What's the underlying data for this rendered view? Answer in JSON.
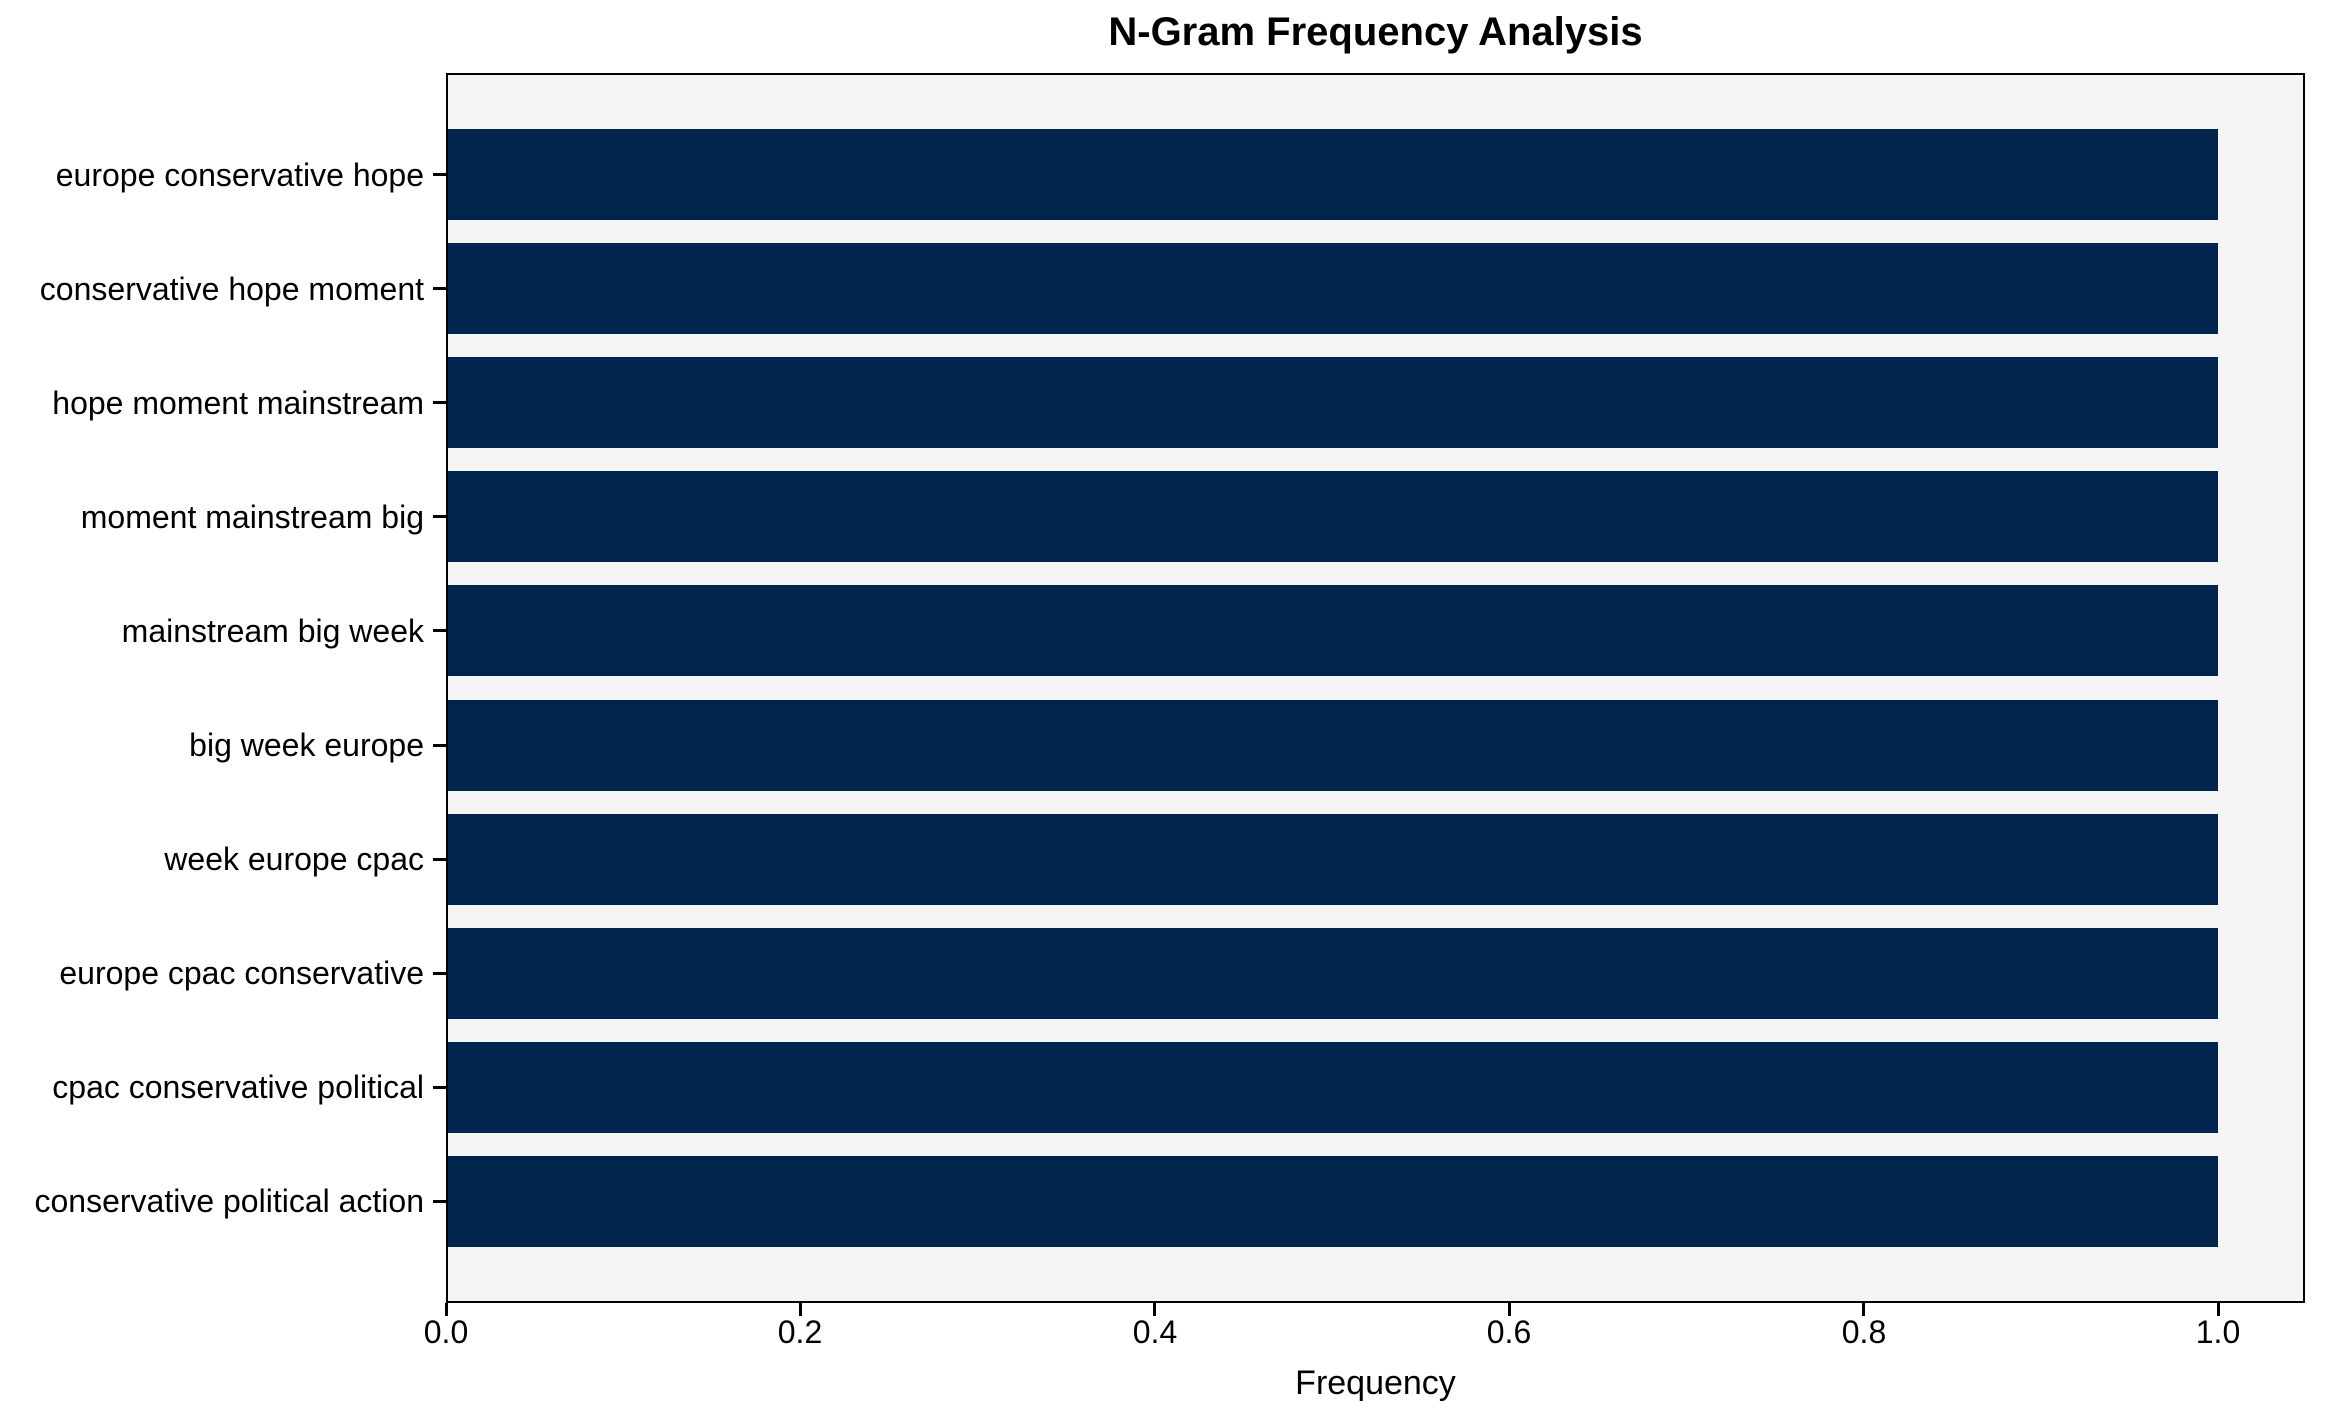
{
  "chart_data": {
    "type": "bar",
    "orientation": "horizontal",
    "title": "N-Gram Frequency Analysis",
    "xlabel": "Frequency",
    "ylabel": "",
    "categories": [
      "europe conservative hope",
      "conservative hope moment",
      "hope moment mainstream",
      "moment mainstream big",
      "mainstream big week",
      "big week europe",
      "week europe cpac",
      "europe cpac conservative",
      "cpac conservative political",
      "conservative political action"
    ],
    "values": [
      1.0,
      1.0,
      1.0,
      1.0,
      1.0,
      1.0,
      1.0,
      1.0,
      1.0,
      1.0
    ],
    "xlim": [
      0.0,
      1.05
    ],
    "x_ticks": [
      0.0,
      0.2,
      0.4,
      0.6,
      0.8,
      1.0
    ],
    "x_tick_labels": [
      "0.0",
      "0.2",
      "0.4",
      "0.6",
      "0.8",
      "1.0"
    ],
    "grid": false,
    "legend": null,
    "colors": {
      "bar": "#02254d",
      "plot_background": "#f5f5f5",
      "figure_background": "#ffffff",
      "spine": "#000000",
      "text": "#000000"
    }
  }
}
